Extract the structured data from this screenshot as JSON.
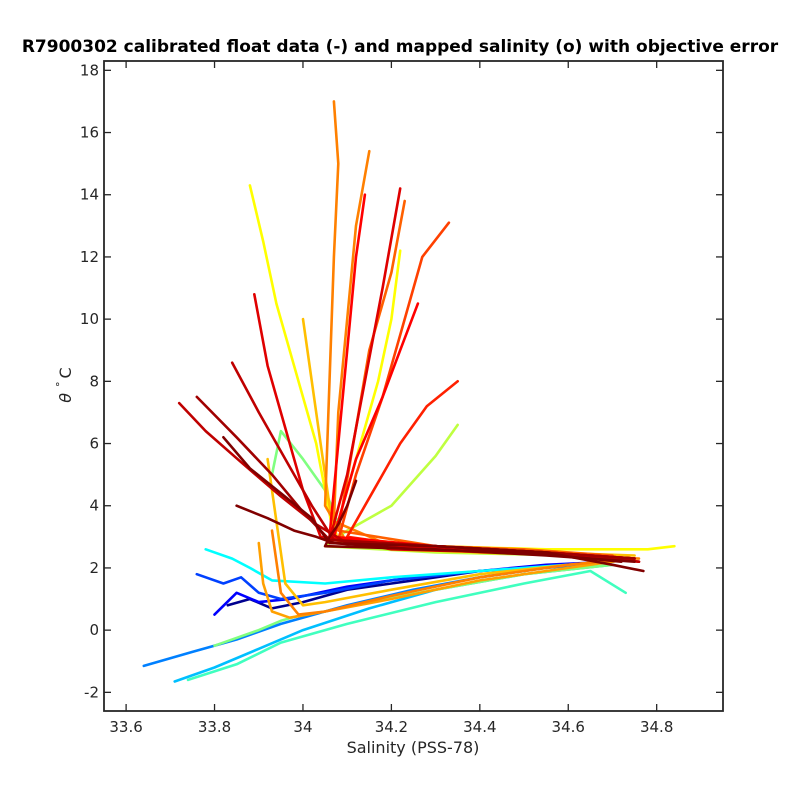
{
  "chart_data": {
    "type": "line",
    "title": "R7900302 calibrated float data (-) and mapped salinity (o) with objective error",
    "xlabel": "Salinity (PSS-78)",
    "ylabel_symbol": "θ",
    "ylabel_degree": "°",
    "ylabel_unit": "C",
    "xlim": [
      33.55,
      34.95
    ],
    "ylim": [
      -2.6,
      18.3
    ],
    "xticks": [
      "33.6",
      "33.8",
      "34",
      "34.2",
      "34.4",
      "34.6",
      "34.8"
    ],
    "yticks": [
      "-2",
      "0",
      "2",
      "4",
      "6",
      "8",
      "10",
      "12",
      "14",
      "16",
      "18"
    ],
    "colormap": "jet",
    "colors": {
      "dark_blue": "#00008f",
      "blue": "#0000ff",
      "light_blue": "#0080ff",
      "cyan": "#00ffff",
      "aqua_green": "#40ffbf",
      "yellow_green": "#bfff40",
      "yellow": "#ffff00",
      "gold": "#ffbf00",
      "orange": "#ff8000",
      "red_orange": "#ff4000",
      "red": "#ff0000",
      "dark_red": "#800000"
    },
    "series": [
      {
        "color": "#00008f",
        "x": [
          33.83,
          33.88,
          33.93,
          34.0,
          34.1,
          34.2,
          34.3,
          34.4,
          34.5,
          34.6,
          34.7
        ],
        "y": [
          0.8,
          1.0,
          0.7,
          0.9,
          1.3,
          1.5,
          1.7,
          1.9,
          2.0,
          2.1,
          2.2
        ]
      },
      {
        "color": "#0000ff",
        "x": [
          33.8,
          33.85,
          33.9,
          33.97,
          34.1,
          34.25,
          34.4,
          34.55,
          34.7
        ],
        "y": [
          0.5,
          1.2,
          0.9,
          1.0,
          1.4,
          1.7,
          1.9,
          2.1,
          2.2
        ]
      },
      {
        "color": "#0040ff",
        "x": [
          33.76,
          33.82,
          33.86,
          33.9,
          33.95,
          34.05,
          34.2,
          34.4,
          34.6
        ],
        "y": [
          1.8,
          1.5,
          1.7,
          1.2,
          1.0,
          1.2,
          1.6,
          1.9,
          2.1
        ]
      },
      {
        "color": "#0080ff",
        "x": [
          33.64,
          33.75,
          33.85,
          33.95,
          34.1,
          34.25,
          34.4,
          34.55,
          34.7
        ],
        "y": [
          -1.15,
          -0.7,
          -0.3,
          0.2,
          0.8,
          1.3,
          1.7,
          2.0,
          2.2
        ]
      },
      {
        "color": "#00bfff",
        "x": [
          33.71,
          33.8,
          33.9,
          34.0,
          34.15,
          34.3,
          34.5,
          34.7
        ],
        "y": [
          -1.65,
          -1.2,
          -0.6,
          0.0,
          0.7,
          1.3,
          1.8,
          2.1
        ]
      },
      {
        "color": "#00ffff",
        "x": [
          33.78,
          33.84,
          33.88,
          33.93,
          34.05,
          34.2,
          34.4,
          34.6
        ],
        "y": [
          2.6,
          2.3,
          2.0,
          1.6,
          1.5,
          1.7,
          1.9,
          2.1
        ]
      },
      {
        "color": "#40ffbf",
        "x": [
          33.74,
          33.85,
          33.95,
          34.1,
          34.3,
          34.5,
          34.65,
          34.73
        ],
        "y": [
          -1.6,
          -1.1,
          -0.4,
          0.2,
          0.9,
          1.5,
          1.9,
          1.2
        ]
      },
      {
        "color": "#80ff80",
        "x": [
          33.8,
          33.9,
          33.95,
          34.0,
          34.05,
          34.15,
          34.3,
          34.5,
          34.7
        ],
        "y": [
          -0.5,
          0.0,
          0.3,
          0.5,
          0.6,
          0.9,
          1.3,
          1.8,
          2.1
        ]
      },
      {
        "color": "#80ff80",
        "x": [
          33.93,
          33.95,
          34.0,
          34.05,
          34.1
        ],
        "y": [
          5.0,
          6.4,
          5.5,
          4.5,
          2.7
        ]
      },
      {
        "color": "#bfff40",
        "x": [
          34.35,
          34.3,
          34.25,
          34.2,
          34.1,
          34.05,
          34.3,
          34.6,
          34.75
        ],
        "y": [
          6.6,
          5.6,
          4.8,
          4.0,
          3.2,
          2.7,
          2.5,
          2.4,
          2.3
        ]
      },
      {
        "color": "#ffff00",
        "x": [
          33.88,
          33.91,
          33.94,
          33.98,
          34.03,
          34.07,
          34.2,
          34.4,
          34.6,
          34.75
        ],
        "y": [
          14.3,
          12.5,
          10.5,
          8.5,
          6.0,
          3.0,
          2.6,
          2.5,
          2.4,
          2.3
        ]
      },
      {
        "color": "#ffff00",
        "x": [
          34.22,
          34.2,
          34.17,
          34.12,
          34.07,
          34.3,
          34.55,
          34.78,
          34.84
        ],
        "y": [
          12.2,
          10.0,
          8.0,
          5.5,
          3.0,
          2.7,
          2.6,
          2.6,
          2.7
        ]
      },
      {
        "color": "#ffbf00",
        "x": [
          34.0,
          34.02,
          34.04,
          34.06,
          34.08,
          34.3,
          34.55,
          34.75
        ],
        "y": [
          10.0,
          8.0,
          6.0,
          4.0,
          2.8,
          2.6,
          2.5,
          2.4
        ]
      },
      {
        "color": "#ffbf00",
        "x": [
          33.92,
          33.94,
          33.96,
          34.0,
          34.05,
          34.2,
          34.4,
          34.6,
          34.75
        ],
        "y": [
          5.5,
          3.5,
          1.5,
          0.8,
          0.9,
          1.3,
          1.8,
          2.1,
          2.3
        ]
      },
      {
        "color": "#ffa000",
        "x": [
          33.9,
          33.91,
          33.93,
          33.97,
          34.05,
          34.2,
          34.4,
          34.6,
          34.75
        ],
        "y": [
          2.8,
          1.5,
          0.6,
          0.4,
          0.6,
          1.0,
          1.6,
          2.0,
          2.3
        ]
      },
      {
        "color": "#ff8000",
        "x": [
          34.07,
          34.08,
          34.07,
          34.06,
          34.05,
          34.1,
          34.3,
          34.5,
          34.7
        ],
        "y": [
          17.0,
          15.0,
          12.0,
          8.0,
          4.0,
          2.8,
          2.6,
          2.5,
          2.4
        ]
      },
      {
        "color": "#ff8000",
        "x": [
          34.15,
          34.12,
          34.1,
          34.08,
          34.07,
          34.2,
          34.4,
          34.6,
          34.76
        ],
        "y": [
          15.4,
          13.0,
          10.0,
          7.0,
          3.5,
          2.7,
          2.5,
          2.4,
          2.3
        ]
      },
      {
        "color": "#ff8000",
        "x": [
          33.93,
          33.95,
          33.99,
          34.05,
          34.2,
          34.4,
          34.6,
          34.75
        ],
        "y": [
          3.2,
          1.2,
          0.5,
          0.6,
          1.1,
          1.7,
          2.1,
          2.3
        ]
      },
      {
        "color": "#ff6000",
        "x": [
          34.23,
          34.2,
          34.15,
          34.12,
          34.08,
          34.3,
          34.5,
          34.7
        ],
        "y": [
          13.8,
          11.5,
          9.0,
          6.5,
          3.2,
          2.7,
          2.6,
          2.4
        ]
      },
      {
        "color": "#ff4000",
        "x": [
          34.33,
          34.27,
          34.23,
          34.18,
          34.12,
          34.08,
          34.3,
          34.55,
          34.75
        ],
        "y": [
          13.1,
          12.0,
          10.0,
          7.5,
          5.0,
          2.9,
          2.7,
          2.5,
          2.3
        ]
      },
      {
        "color": "#ff2000",
        "x": [
          34.35,
          34.28,
          34.22,
          34.16,
          34.1,
          34.3,
          34.55,
          34.75
        ],
        "y": [
          8.0,
          7.2,
          6.0,
          4.5,
          3.0,
          2.6,
          2.5,
          2.3
        ]
      },
      {
        "color": "#ff0000",
        "x": [
          34.14,
          34.12,
          34.1,
          34.08,
          34.06,
          34.2,
          34.4,
          34.6,
          34.76
        ],
        "y": [
          14.0,
          12.0,
          9.0,
          6.0,
          3.0,
          2.7,
          2.6,
          2.4,
          2.2
        ]
      },
      {
        "color": "#ff0000",
        "x": [
          34.26,
          34.22,
          34.18,
          34.12,
          34.07,
          34.3,
          34.55,
          34.75
        ],
        "y": [
          10.5,
          9.0,
          7.5,
          5.5,
          3.0,
          2.7,
          2.5,
          2.3
        ]
      },
      {
        "color": "#df0000",
        "x": [
          34.22,
          34.18,
          34.14,
          34.1,
          34.06,
          34.3,
          34.55,
          34.75
        ],
        "y": [
          14.2,
          11.0,
          8.0,
          5.0,
          2.9,
          2.7,
          2.5,
          2.3
        ]
      },
      {
        "color": "#df0000",
        "x": [
          33.89,
          33.92,
          33.96,
          34.0,
          34.04,
          34.2,
          34.45,
          34.7
        ],
        "y": [
          10.8,
          8.5,
          6.5,
          4.5,
          3.0,
          2.6,
          2.5,
          2.3
        ]
      },
      {
        "color": "#bf0000",
        "x": [
          33.84,
          33.9,
          33.96,
          34.02,
          34.07,
          34.3,
          34.55,
          34.75
        ],
        "y": [
          8.6,
          7.0,
          5.5,
          4.0,
          2.9,
          2.7,
          2.5,
          2.3
        ]
      },
      {
        "color": "#bf0000",
        "x": [
          33.72,
          33.78,
          33.86,
          33.95,
          34.03,
          34.1,
          34.3,
          34.55,
          34.76
        ],
        "y": [
          7.3,
          6.4,
          5.4,
          4.3,
          3.4,
          2.8,
          2.7,
          2.5,
          2.2
        ]
      },
      {
        "color": "#a00000",
        "x": [
          33.76,
          33.85,
          33.93,
          34.0,
          34.06,
          34.3,
          34.55,
          34.75
        ],
        "y": [
          7.5,
          6.2,
          5.0,
          3.8,
          2.9,
          2.7,
          2.5,
          2.3
        ]
      },
      {
        "color": "#800000",
        "x": [
          33.82,
          33.88,
          33.95,
          34.02,
          34.06,
          34.3,
          34.55,
          34.7,
          34.77
        ],
        "y": [
          6.2,
          5.2,
          4.4,
          3.6,
          2.8,
          2.7,
          2.5,
          2.1,
          1.9
        ]
      },
      {
        "color": "#800000",
        "x": [
          33.85,
          33.92,
          33.98,
          34.03,
          34.07,
          34.25,
          34.5,
          34.72
        ],
        "y": [
          4.0,
          3.6,
          3.2,
          3.0,
          2.8,
          2.6,
          2.5,
          2.2
        ]
      },
      {
        "color": "#800000",
        "x": [
          34.12,
          34.1,
          34.08,
          34.06,
          34.05,
          34.3,
          34.55,
          34.75
        ],
        "y": [
          4.8,
          4.0,
          3.4,
          3.0,
          2.7,
          2.6,
          2.4,
          2.2
        ]
      }
    ]
  }
}
